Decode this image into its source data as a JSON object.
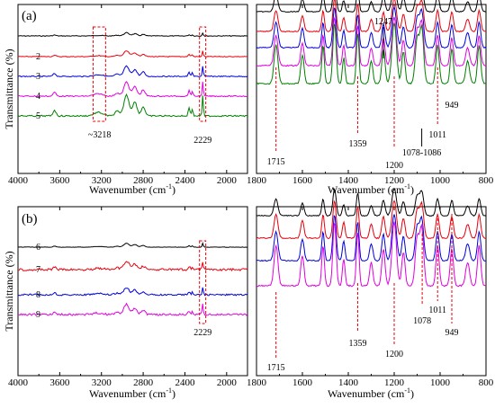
{
  "figure": {
    "panels": [
      "(a)",
      "(b)"
    ],
    "y_axis_title": "Transmittance (%)",
    "x_axis_title_base": "Wavenumber (cm",
    "x_axis_title_exp": "-1",
    "x_axis_title_end": ")"
  },
  "colors": {
    "1": "#000000",
    "2": "#e8000b",
    "3": "#0000e0",
    "4": "#e000e0",
    "5": "#008000",
    "6": "#000000",
    "7": "#e8000b",
    "8": "#0000e0",
    "9": "#e000e0",
    "guide": "#e8000b"
  },
  "chart_data": [
    {
      "panel": "(a)",
      "type": "line",
      "subplot": "left",
      "x_range": [
        4000,
        1800
      ],
      "x_ticks": [
        "4000",
        "3600",
        "3200",
        "2800",
        "2400",
        "2000"
      ],
      "series_labels": [
        "2",
        "3",
        "4",
        "5"
      ],
      "annotations": [
        "~3218",
        "2229"
      ],
      "highlight_regions": [
        [
          3280,
          3160
        ],
        [
          2260,
          2200
        ]
      ]
    },
    {
      "panel": "(a)",
      "type": "line",
      "subplot": "right",
      "x_range": [
        1800,
        800
      ],
      "x_ticks": [
        "1800",
        "1600",
        "1400",
        "1200",
        "1000",
        "800"
      ],
      "annotations": [
        "1715",
        "1359",
        "1247",
        "1200",
        "1078-1086",
        "1011",
        "949"
      ],
      "guide_lines": [
        1715,
        1359,
        1200,
        1011
      ]
    },
    {
      "panel": "(b)",
      "type": "line",
      "subplot": "left",
      "x_range": [
        4000,
        1800
      ],
      "x_ticks": [
        "4000",
        "3600",
        "3200",
        "2800",
        "2400",
        "2000"
      ],
      "series_labels": [
        "6",
        "7",
        "8",
        "9"
      ],
      "annotations": [
        "2229"
      ],
      "highlight_regions": [
        [
          2260,
          2200
        ]
      ]
    },
    {
      "panel": "(b)",
      "type": "line",
      "subplot": "right",
      "x_range": [
        1800,
        800
      ],
      "x_ticks": [
        "1800",
        "1600",
        "1400",
        "1200",
        "1000",
        "800"
      ],
      "annotations": [
        "1715",
        "1359",
        "1200",
        "1078",
        "1011",
        "949"
      ],
      "guide_lines": [
        1715,
        1359,
        1200,
        1078,
        1011,
        949
      ]
    }
  ]
}
